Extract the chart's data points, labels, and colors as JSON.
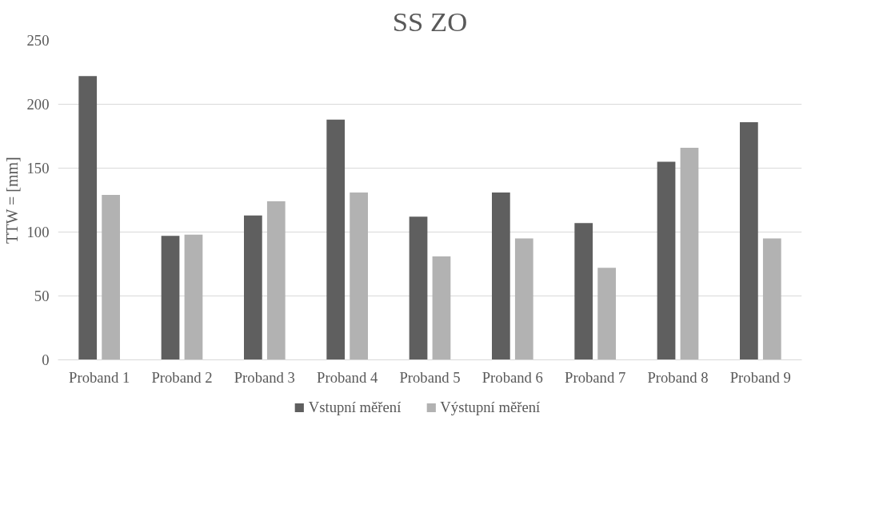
{
  "chart_data": {
    "type": "bar",
    "title": "SS ZO",
    "ylabel": "TTW = [mm]",
    "categories": [
      "Proband 1",
      "Proband 2",
      "Proband 3",
      "Proband 4",
      "Proband 5",
      "Proband 6",
      "Proband 7",
      "Proband 8",
      "Proband 9"
    ],
    "series": [
      {
        "name": "Vstupní měření",
        "color": "#5f5f5f",
        "values": [
          222,
          97,
          113,
          188,
          112,
          131,
          107,
          155,
          186
        ]
      },
      {
        "name": "Výstupní měření",
        "color": "#b2b2b2",
        "values": [
          129,
          98,
          124,
          131,
          81,
          95,
          72,
          166,
          95
        ]
      }
    ],
    "ylim": [
      0,
      250
    ],
    "yticks": [
      0,
      50,
      100,
      150,
      200,
      250
    ],
    "grid": "y",
    "legend": "bottom"
  }
}
